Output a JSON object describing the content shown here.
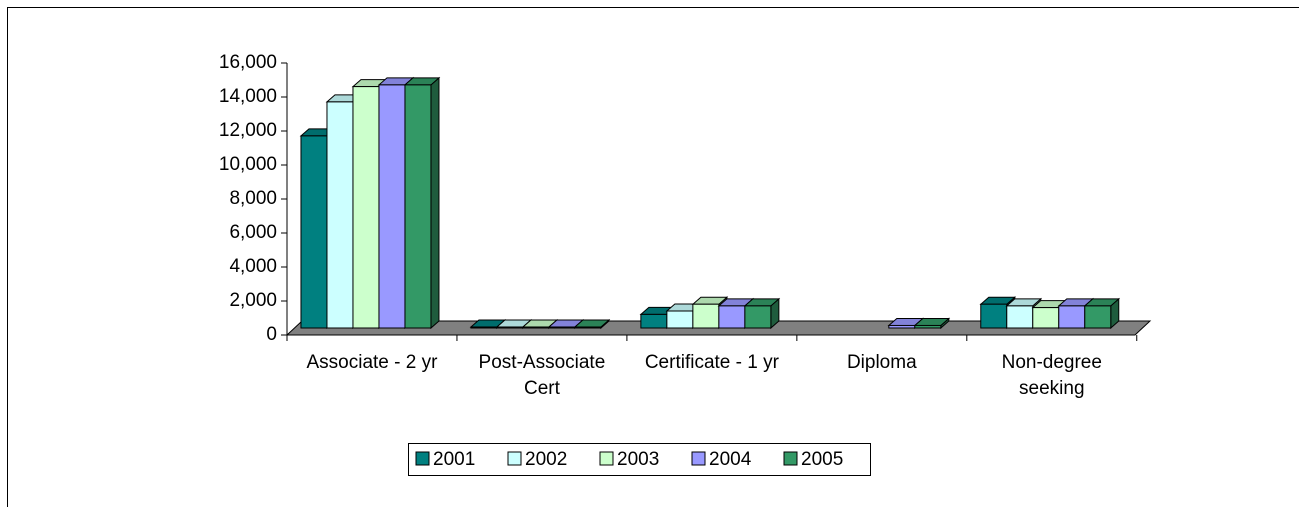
{
  "chart_data": {
    "type": "bar3d",
    "categories": [
      "Associate - 2 yr",
      "Post-Associate Cert",
      "Certificate - 1 yr",
      "Diploma",
      "Non-degree seeking"
    ],
    "series": [
      {
        "name": "2001",
        "color": "#008080",
        "values": [
          11300,
          60,
          800,
          null,
          1400
        ]
      },
      {
        "name": "2002",
        "color": "#ccffff",
        "values": [
          13300,
          60,
          1000,
          null,
          1300
        ]
      },
      {
        "name": "2003",
        "color": "#ccffcc",
        "values": [
          14200,
          60,
          1400,
          null,
          1200
        ]
      },
      {
        "name": "2004",
        "color": "#9999ff",
        "values": [
          14300,
          60,
          1300,
          150,
          1300
        ]
      },
      {
        "name": "2005",
        "color": "#339966",
        "values": [
          14300,
          60,
          1300,
          150,
          1300
        ]
      }
    ],
    "ylim": [
      0,
      16000
    ],
    "yticks": [
      0,
      {
        "value": 2000,
        "label": "2,000"
      },
      {
        "value": 4000,
        "label": "4,000"
      },
      {
        "value": 6000,
        "label": "6,000"
      },
      {
        "value": 8000,
        "label": "8,000"
      },
      {
        "value": 10000,
        "label": "10,000"
      },
      {
        "value": 12000,
        "label": "12,000"
      },
      {
        "value": 14000,
        "label": "14,000"
      },
      {
        "value": 16000,
        "label": "16,000"
      }
    ],
    "legend": "bottom"
  }
}
